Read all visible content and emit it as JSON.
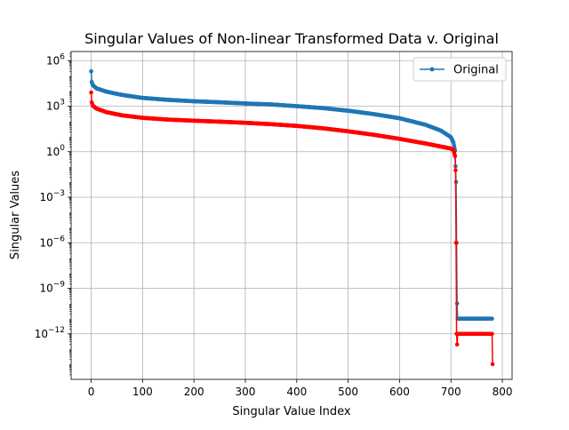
{
  "chart_data": {
    "type": "line",
    "title": "Singular Values of Non-linear Transformed Data v. Original",
    "xlabel": "Singular Value Index",
    "ylabel": "Singular Values",
    "xlim": [
      -39,
      819
    ],
    "ylim_log10": [
      -15,
      6.6
    ],
    "y_scale": "log",
    "grid": true,
    "legend_position": "top-right",
    "x_ticks": [
      0,
      100,
      200,
      300,
      400,
      500,
      600,
      700,
      800
    ],
    "y_ticks_exp": [
      6,
      3,
      0,
      -3,
      -6,
      -9,
      -12
    ],
    "y_tick_base": "10",
    "legend": [
      {
        "label": "Original",
        "color": "#1f77b4"
      }
    ],
    "series": [
      {
        "name": "Original",
        "color": "#1f77b4",
        "marker": "circle",
        "points": [
          [
            0,
            200000
          ],
          [
            1,
            40000
          ],
          [
            3,
            25000
          ],
          [
            10,
            15000
          ],
          [
            30,
            9000
          ],
          [
            60,
            5500
          ],
          [
            100,
            3500
          ],
          [
            150,
            2600
          ],
          [
            200,
            2100
          ],
          [
            250,
            1800
          ],
          [
            300,
            1500
          ],
          [
            350,
            1300
          ],
          [
            400,
            1000
          ],
          [
            450,
            750
          ],
          [
            500,
            500
          ],
          [
            550,
            300
          ],
          [
            600,
            160
          ],
          [
            650,
            60
          ],
          [
            680,
            25
          ],
          [
            700,
            9
          ],
          [
            705,
            4
          ],
          [
            708,
            1.2
          ],
          [
            710,
            0.01
          ],
          [
            711,
            1e-06
          ],
          [
            712,
            1e-10
          ],
          [
            713,
            1e-11
          ],
          [
            714,
            1e-11
          ],
          [
            780,
            1e-11
          ]
        ]
      },
      {
        "name": "",
        "color": "#ff0000",
        "marker": "circle",
        "points": [
          [
            0,
            8000
          ],
          [
            1,
            1800
          ],
          [
            3,
            1100
          ],
          [
            10,
            700
          ],
          [
            30,
            400
          ],
          [
            60,
            250
          ],
          [
            100,
            170
          ],
          [
            150,
            130
          ],
          [
            200,
            110
          ],
          [
            250,
            95
          ],
          [
            300,
            80
          ],
          [
            350,
            65
          ],
          [
            400,
            50
          ],
          [
            450,
            35
          ],
          [
            500,
            22
          ],
          [
            550,
            13
          ],
          [
            600,
            7
          ],
          [
            650,
            3.5
          ],
          [
            680,
            2.2
          ],
          [
            700,
            1.6
          ],
          [
            705,
            1.3
          ],
          [
            708,
            0.5
          ],
          [
            709,
            0.06
          ],
          [
            710,
            1e-06
          ],
          [
            711,
            1e-12
          ],
          [
            712,
            2e-13
          ],
          [
            713,
            1e-12
          ],
          [
            780,
            1e-12
          ],
          [
            781,
            1e-14
          ]
        ]
      }
    ]
  }
}
